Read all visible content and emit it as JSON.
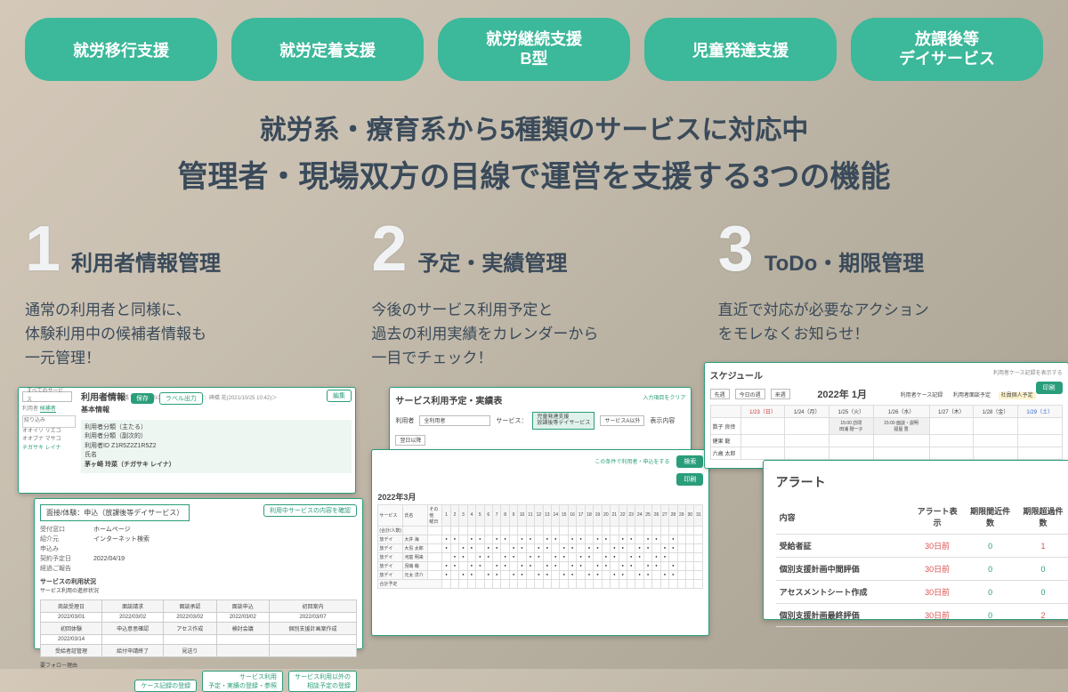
{
  "colors": {
    "accent": "#3cb89a",
    "heading": "#3a4a5a",
    "red": "#d9534f",
    "green": "#2a9d7a"
  },
  "pills": [
    {
      "text": "就労移行支援"
    },
    {
      "text": "就労定着支援"
    },
    {
      "line1": "就労継続支援",
      "line2": "B型"
    },
    {
      "text": "児童発達支援"
    },
    {
      "line1": "放課後等",
      "line2": "デイサービス"
    }
  ],
  "headline": {
    "line1": "就労系・療育系から5種類のサービスに対応中",
    "line2": "管理者・現場双方の目線で運営を支援する3つの機能"
  },
  "features": [
    {
      "num": "1",
      "title": "利用者情報管理",
      "desc": "通常の利用者と同様に、\n体験利用中の候補者情報も\n一元管理！"
    },
    {
      "num": "2",
      "title": "予定・実績管理",
      "desc": "今後のサービス利用予定と\n過去の利用実績をカレンダーから\n一目でチェック！"
    },
    {
      "num": "3",
      "title": "ToDo・期限管理",
      "desc": "直近で対応が必要なアクション\nをモレなくお知らせ！"
    }
  ],
  "col1": {
    "shot1": {
      "meta": "＜登録：碑橋 花(2021/10/25 10:46)＞ ＜登録：碑橋 花(2021/10/25 10:42)＞",
      "sidebar": {
        "svc": "すべてのサービス",
        "tab1": "利用者",
        "tab2": "候補者",
        "filter": "絞り込み",
        "names": [
          "オオイソ リエコ",
          "オオブナ マサコ",
          "チガサキ レイナ"
        ]
      },
      "title": "利用者情報",
      "save": "保存",
      "label": "ラベル出力",
      "edit": "編集",
      "section": "基本情報",
      "rows": [
        {
          "k": "利用者分類（主たる）",
          "v": ""
        },
        {
          "k": "利用者分類（副次的）",
          "v": ""
        },
        {
          "k": "利用者ID",
          "v": "Z1R5Z2Z1R5Z2"
        }
      ],
      "name_label": "氏名",
      "name": "茅ヶ崎 玲菜（チガサキ レイナ）"
    },
    "shot2": {
      "header": "面接/体験：申込（放課後等デイサービス）",
      "badge": "利用中サービスの内容を確認",
      "kv": [
        {
          "k": "受付窓口",
          "v": "ホームページ"
        },
        {
          "k": "紹介元",
          "v": "インターネット検索"
        },
        {
          "k": "申込み"
        },
        {
          "k": "契約予定日",
          "v": "2022/04/19"
        },
        {
          "k": "経過ご報告"
        }
      ],
      "sub": "サービスの利用状況",
      "sub2": "サービス利用の進捗状況",
      "thead": [
        "商談受理日",
        "面談請求",
        "面談承認",
        "面談申込",
        "初回案内"
      ],
      "r1": [
        "2022/03/01",
        "2022/03/02",
        "2022/03/02",
        "2022/03/02",
        "2022/03/07"
      ],
      "thead2": [
        "初回体験",
        "申込意思確認",
        "アセス作成",
        "検討会議",
        "個別支援計画案作成"
      ],
      "r2": [
        "2022/03/14",
        "",
        "",
        "",
        ""
      ],
      "thead3": [
        "受給者証管理",
        "給付申請終了",
        "見送り",
        "",
        ""
      ],
      "footer": "要フォロー理由",
      "btns": [
        "ケース記録の登録",
        "サービス利用\n予定・実績の登録・参照",
        "サービス利用以外の\n相談予定の登録"
      ]
    }
  },
  "col2": {
    "title": "サービス利用予定・実績表",
    "clear": "入力項目をクリア",
    "filters": {
      "user": "利用者",
      "user_val": "全利用者",
      "svc": "サービス：",
      "svc_box": "児童発達支援\n放課後等デイサービス",
      "svc2": "サービスA以外",
      "period": "表示内容",
      "period_val": "翌日以降"
    },
    "row2": {
      "k": "利用票: 表示対象",
      "v": "ファイルなし",
      "badge": "利用票登録",
      "link": "この条件で利用者・申込をする"
    },
    "search": "検索",
    "print": "印刷",
    "month": "2022年3月",
    "day_header_svc": "サービス",
    "day_header_name": "氏名",
    "day_header_wk": "その他\n曜日",
    "days": [
      "1",
      "2",
      "3",
      "4",
      "5",
      "6",
      "7",
      "8",
      "9",
      "10",
      "11",
      "12",
      "13",
      "14",
      "15",
      "16",
      "17",
      "18",
      "19",
      "20",
      "21",
      "22",
      "23",
      "24",
      "25",
      "26",
      "27",
      "28",
      "29",
      "30",
      "31"
    ],
    "rows": [
      {
        "svc": "(合計/人数)",
        "name": ""
      },
      {
        "svc": "放デイ",
        "name": "大井 海"
      },
      {
        "svc": "放デイ",
        "name": "大島 太郎"
      },
      {
        "svc": "放デイ",
        "name": "河庭 明来"
      },
      {
        "svc": "放デイ",
        "name": "児嶋 萌"
      },
      {
        "svc": "放デイ",
        "name": "元太 洋介"
      }
    ],
    "total": "合計予定"
  },
  "col3": {
    "shot1": {
      "title": "スケジュール",
      "print": "印刷",
      "hint": "利用者ケース記録を表示する",
      "nav_prev": "先週",
      "nav_today": "今日の週",
      "nav_next": "来週",
      "month": "2022年 1月",
      "tabs": [
        "利用者ケース記録",
        "利用者面談予定",
        "社員個人予定"
      ],
      "days": [
        {
          "d": "1/23（日）",
          "cls": "sun"
        },
        {
          "d": "1/24（月）"
        },
        {
          "d": "1/25（火）"
        },
        {
          "d": "1/26（水）"
        },
        {
          "d": "1/27（木）"
        },
        {
          "d": "1/28（金）"
        },
        {
          "d": "1/29（土）",
          "cls": "sat"
        }
      ],
      "staff": [
        "数子 良倖",
        "健果 龍",
        "六歳 太郎"
      ],
      "events": [
        {
          "r": 0,
          "c": 2,
          "t": "15:00 訪問\n田浦 剛一子"
        },
        {
          "r": 0,
          "c": 3,
          "t": "15:00 面談・説明\n寝屋 豊"
        }
      ]
    },
    "alert": {
      "title": "アラート",
      "cols": [
        "内容",
        "アラート表示",
        "期限間近件数",
        "期限超過件数"
      ],
      "rows": [
        {
          "name": "受給者証",
          "alert": "30日前",
          "near": "0",
          "over": "1"
        },
        {
          "name": "個別支援計画中間評価",
          "alert": "30日前",
          "near": "0",
          "over": "0"
        },
        {
          "name": "アセスメントシート作成",
          "alert": "30日前",
          "near": "0",
          "over": "0"
        },
        {
          "name": "個別支援計画最終評価",
          "alert": "30日前",
          "near": "0",
          "over": "2"
        }
      ]
    }
  }
}
